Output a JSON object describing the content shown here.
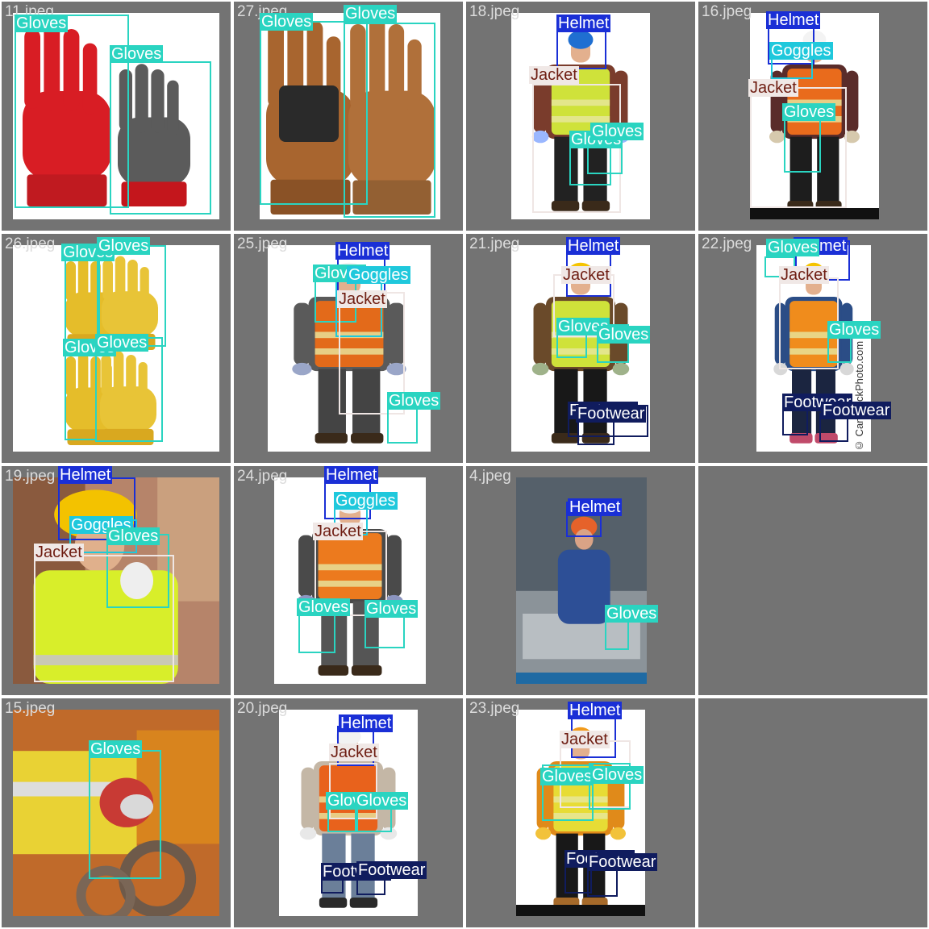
{
  "colors": {
    "cell_background": "#737373",
    "gloves": "#2ad4c1",
    "helmet": "#1a2fd6",
    "goggles": "#1fc8dc",
    "jacket_bg": "#f0e8e6",
    "jacket_text": "#6e1d12",
    "footwear": "#101c5e"
  },
  "tiles": [
    {
      "file": "11.jpeg",
      "scene": "red-gloves",
      "detections": [
        {
          "label": "Gloves",
          "cls": "gloves"
        },
        {
          "label": "Gloves",
          "cls": "gloves"
        }
      ]
    },
    {
      "file": "27.jpeg",
      "scene": "brown-gloves",
      "detections": [
        {
          "label": "Gloves",
          "cls": "gloves"
        },
        {
          "label": "Gloves",
          "cls": "gloves"
        }
      ]
    },
    {
      "file": "18.jpeg",
      "scene": "worker-blue-helmet",
      "detections": [
        {
          "label": "Helmet",
          "cls": "helmet"
        },
        {
          "label": "Jacket",
          "cls": "jacket"
        },
        {
          "label": "Gloves",
          "cls": "gloves"
        },
        {
          "label": "Gloves",
          "cls": "gloves"
        }
      ]
    },
    {
      "file": "16.jpeg",
      "scene": "worker-orange-vest",
      "detections": [
        {
          "label": "Helmet",
          "cls": "helmet"
        },
        {
          "label": "Goggles",
          "cls": "goggles"
        },
        {
          "label": "Jacket",
          "cls": "jacket"
        },
        {
          "label": "Gloves",
          "cls": "gloves"
        }
      ]
    },
    {
      "file": "26.jpeg",
      "scene": "yellow-gloves",
      "detections": [
        {
          "label": "Gloves",
          "cls": "gloves"
        },
        {
          "label": "Gloves",
          "cls": "gloves"
        },
        {
          "label": "Gloves",
          "cls": "gloves"
        },
        {
          "label": "Gloves",
          "cls": "gloves"
        }
      ]
    },
    {
      "file": "25.jpeg",
      "scene": "worker-orange-vest-tall",
      "detections": [
        {
          "label": "Helmet",
          "cls": "helmet"
        },
        {
          "label": "Gloves",
          "cls": "gloves"
        },
        {
          "label": "Goggles",
          "cls": "goggles"
        },
        {
          "label": "Jacket",
          "cls": "jacket"
        },
        {
          "label": "Gloves",
          "cls": "gloves"
        }
      ]
    },
    {
      "file": "21.jpeg",
      "scene": "worker-yellow-vest",
      "detections": [
        {
          "label": "Helmet",
          "cls": "helmet"
        },
        {
          "label": "Jacket",
          "cls": "jacket"
        },
        {
          "label": "Gloves",
          "cls": "gloves"
        },
        {
          "label": "Gloves",
          "cls": "gloves"
        },
        {
          "label": "Footwear",
          "cls": "footwear"
        },
        {
          "label": "Footwear",
          "cls": "footwear"
        }
      ]
    },
    {
      "file": "22.jpeg",
      "scene": "worker-orange-full",
      "detections": [
        {
          "label": "Helmet",
          "cls": "helmet"
        },
        {
          "label": "Gloves",
          "cls": "gloves"
        },
        {
          "label": "Jacket",
          "cls": "jacket"
        },
        {
          "label": "Gloves",
          "cls": "gloves"
        },
        {
          "label": "Footwear",
          "cls": "footwear"
        },
        {
          "label": "Footwear",
          "cls": "footwear"
        }
      ],
      "watermark": "© CanStockPhoto.com"
    },
    {
      "file": "19.jpeg",
      "scene": "woman-yellow-vest",
      "detections": [
        {
          "label": "Helmet",
          "cls": "helmet"
        },
        {
          "label": "Goggles",
          "cls": "goggles"
        },
        {
          "label": "Gloves",
          "cls": "gloves"
        },
        {
          "label": "Jacket",
          "cls": "jacket"
        }
      ]
    },
    {
      "file": "24.jpeg",
      "scene": "worker-orange-vest-2",
      "detections": [
        {
          "label": "Helmet",
          "cls": "helmet"
        },
        {
          "label": "Goggles",
          "cls": "goggles"
        },
        {
          "label": "Jacket",
          "cls": "jacket"
        },
        {
          "label": "Gloves",
          "cls": "gloves"
        },
        {
          "label": "Gloves",
          "cls": "gloves"
        }
      ]
    },
    {
      "file": "4.jpeg",
      "scene": "factory-worker",
      "detections": [
        {
          "label": "Helmet",
          "cls": "helmet"
        },
        {
          "label": "Gloves",
          "cls": "gloves"
        }
      ]
    },
    {
      "file": "",
      "scene": "empty",
      "detections": []
    },
    {
      "file": "15.jpeg",
      "scene": "gloves-closeup",
      "detections": [
        {
          "label": "Gloves",
          "cls": "gloves"
        }
      ]
    },
    {
      "file": "20.jpeg",
      "scene": "worker-jeans",
      "detections": [
        {
          "label": "Helmet",
          "cls": "helmet"
        },
        {
          "label": "Jacket",
          "cls": "jacket"
        },
        {
          "label": "Gloves",
          "cls": "gloves"
        },
        {
          "label": "Gloves",
          "cls": "gloves"
        },
        {
          "label": "Footwear",
          "cls": "footwear"
        },
        {
          "label": "Footwear",
          "cls": "footwear"
        }
      ]
    },
    {
      "file": "23.jpeg",
      "scene": "worker-yellow-black",
      "detections": [
        {
          "label": "Helmet",
          "cls": "helmet"
        },
        {
          "label": "Jacket",
          "cls": "jacket"
        },
        {
          "label": "Gloves",
          "cls": "gloves"
        },
        {
          "label": "Gloves",
          "cls": "gloves"
        },
        {
          "label": "Footwear",
          "cls": "footwear"
        },
        {
          "label": "Footwear",
          "cls": "footwear"
        }
      ]
    },
    {
      "file": "",
      "scene": "empty",
      "detections": []
    }
  ]
}
